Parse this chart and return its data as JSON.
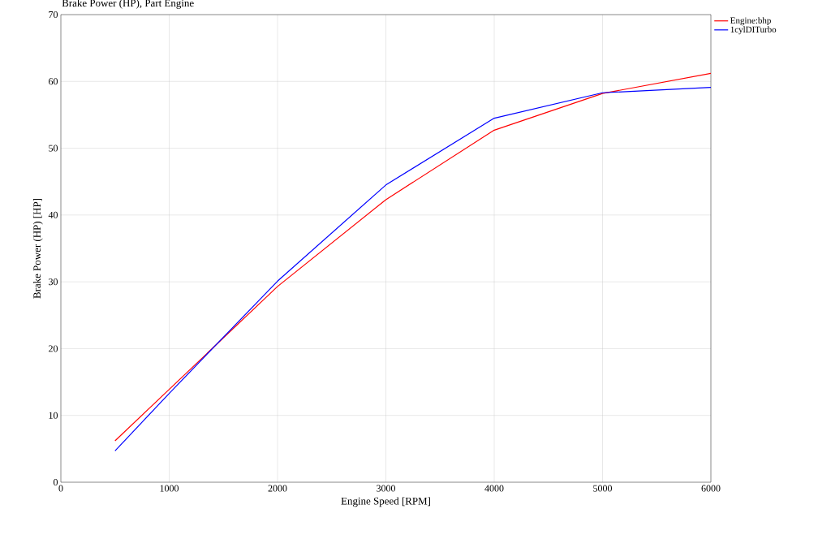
{
  "chart_data": {
    "type": "line",
    "title": "Brake Power (HP), Part Engine",
    "xlabel": "Engine Speed [RPM]",
    "ylabel": "Brake Power (HP) [HP]",
    "x": [
      500,
      1000,
      2000,
      3000,
      4000,
      5000,
      6000
    ],
    "series": [
      {
        "name": "Engine:bhp",
        "color": "#ff0000",
        "values": [
          6.2,
          13.9,
          29.3,
          42.3,
          52.7,
          58.2,
          61.2
        ]
      },
      {
        "name": "1cylDITurbo",
        "color": "#0000ff",
        "values": [
          4.7,
          13.3,
          30.1,
          44.5,
          54.5,
          58.3,
          59.1
        ]
      }
    ],
    "xlim": [
      0,
      6000
    ],
    "ylim": [
      0,
      70
    ],
    "xticks": [
      0,
      1000,
      2000,
      3000,
      4000,
      5000,
      6000
    ],
    "yticks": [
      0,
      10,
      20,
      30,
      40,
      50,
      60,
      70
    ],
    "grid": true,
    "legend": "top right",
    "marker": "none",
    "line_style": "solid"
  }
}
